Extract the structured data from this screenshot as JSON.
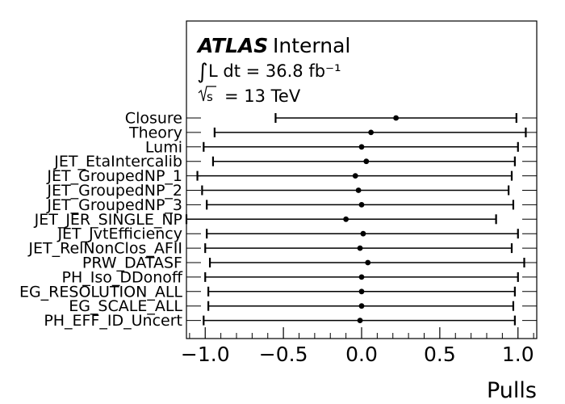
{
  "chart_data": {
    "type": "scatter",
    "subtype": "pull-plot",
    "xlabel": "Pulls",
    "xlim": [
      -1.12,
      1.12
    ],
    "xticks": [
      -1.0,
      -0.5,
      0.0,
      0.5,
      1.0
    ],
    "xtick_labels": [
      "−1.0",
      "−0.5",
      "0.0",
      "0.5",
      "1.0"
    ],
    "annotation": {
      "experiment": "ATLAS",
      "status": "Internal",
      "lumi": "L dt = 36.8 fb⁻¹",
      "energy": "= 13 TeV"
    },
    "marker_color": "#000000",
    "categories": [
      "Closure",
      "Theory",
      "Lumi",
      "JET_EtaIntercalib",
      "JET_GroupedNP_1",
      "JET_GroupedNP_2",
      "JET_GroupedNP_3",
      "JET_JER_SINGLE_NP",
      "JET_JvtEfficiency",
      "JET_RelNonClos_AFII",
      "PRW_DATASF",
      "PH_Iso_DDonoff",
      "EG_RESOLUTION_ALL",
      "EG_SCALE_ALL",
      "PH_EFF_ID_Uncert"
    ],
    "points": [
      {
        "value": 0.22,
        "lo": -0.55,
        "hi": 0.99
      },
      {
        "value": 0.06,
        "lo": -0.94,
        "hi": 1.05
      },
      {
        "value": 0.0,
        "lo": -1.01,
        "hi": 1.0
      },
      {
        "value": 0.03,
        "lo": -0.95,
        "hi": 0.98
      },
      {
        "value": -0.04,
        "lo": -1.05,
        "hi": 0.96
      },
      {
        "value": -0.02,
        "lo": -1.02,
        "hi": 0.94
      },
      {
        "value": 0.0,
        "lo": -0.99,
        "hi": 0.97
      },
      {
        "value": -0.1,
        "lo": -1.12,
        "hi": 0.86
      },
      {
        "value": 0.01,
        "lo": -0.99,
        "hi": 1.0
      },
      {
        "value": -0.01,
        "lo": -1.0,
        "hi": 0.96
      },
      {
        "value": 0.04,
        "lo": -0.97,
        "hi": 1.04
      },
      {
        "value": 0.0,
        "lo": -1.0,
        "hi": 1.0
      },
      {
        "value": 0.0,
        "lo": -0.98,
        "hi": 0.98
      },
      {
        "value": 0.0,
        "lo": -0.98,
        "hi": 0.97
      },
      {
        "value": -0.01,
        "lo": -1.01,
        "hi": 0.98
      }
    ]
  }
}
